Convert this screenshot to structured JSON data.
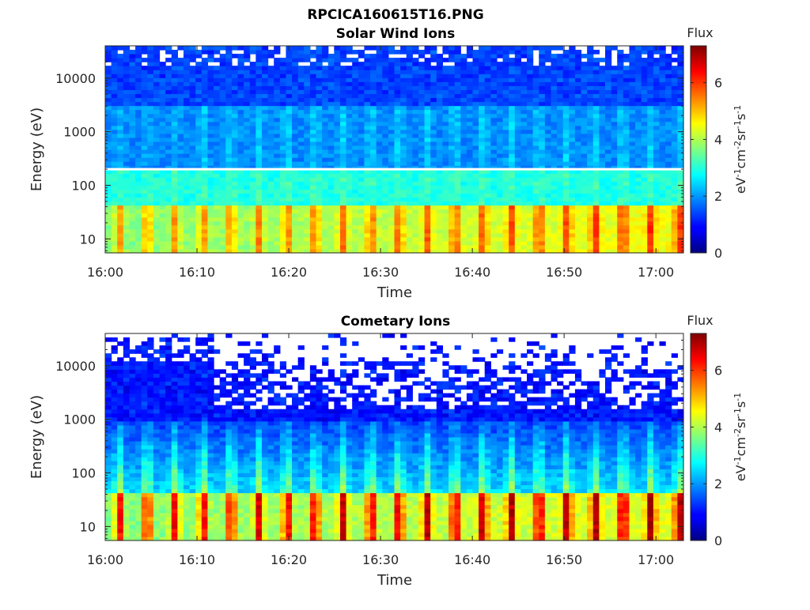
{
  "figure": {
    "title": "RPCICA160615T16.PNG"
  },
  "chart_data": [
    {
      "type": "heatmap",
      "title": "Solar Wind Ions",
      "xlabel": "Time",
      "ylabel": "Energy (eV)",
      "x_ticks": [
        "16:00",
        "16:10",
        "16:20",
        "16:30",
        "16:40",
        "16:50",
        "17:00"
      ],
      "y_ticks": [
        "10",
        "100",
        "1000",
        "10000"
      ],
      "y_scale": "log",
      "xlim": [
        "16:00",
        "17:03"
      ],
      "ylim": [
        5.5,
        40000
      ],
      "colorbar": {
        "title": "Flux",
        "label": "eV-1cm-2sr-1s-1",
        "ticks": [
          "0",
          "2",
          "4",
          "6"
        ],
        "range": [
          0,
          7.3
        ]
      },
      "colormap": "jet",
      "features": [
        {
          "energy_band": "5-40 eV",
          "flux_level": "4-5.5",
          "pattern": "periodic bursts every ~3 min"
        },
        {
          "energy_band": "40-200 eV",
          "flux_level": "~2.5-3"
        },
        {
          "energy_band": "200-3000 eV",
          "flux_level": "~1.5-2.5"
        },
        {
          "energy_band": "3000-40000 eV",
          "flux_level": "~1-1.5"
        }
      ],
      "annotations": [
        "horizontal white line at ~200 eV"
      ]
    },
    {
      "type": "heatmap",
      "title": "Cometary Ions",
      "xlabel": "Time",
      "ylabel": "Energy (eV)",
      "x_ticks": [
        "16:00",
        "16:10",
        "16:20",
        "16:30",
        "16:40",
        "16:50",
        "17:00"
      ],
      "y_ticks": [
        "10",
        "100",
        "1000",
        "10000"
      ],
      "y_scale": "log",
      "xlim": [
        "16:00",
        "17:03"
      ],
      "ylim": [
        5.5,
        40000
      ],
      "colorbar": {
        "title": "Flux",
        "label": "eV-1cm-2sr-1s-1",
        "ticks": [
          "0",
          "2",
          "4",
          "6"
        ],
        "range": [
          0,
          7.3
        ]
      },
      "colormap": "jet",
      "features": [
        {
          "energy_band": "5-40 eV",
          "flux_level": "5-6.5",
          "pattern": "periodic bursts every ~3 min"
        },
        {
          "energy_band": "40-1000 eV",
          "flux_level": "~1.5-3",
          "pattern": "vertical streaks at each burst"
        },
        {
          "energy_band": "1000-40000 eV",
          "flux_level": "~0.5-1, sparse"
        }
      ]
    }
  ]
}
